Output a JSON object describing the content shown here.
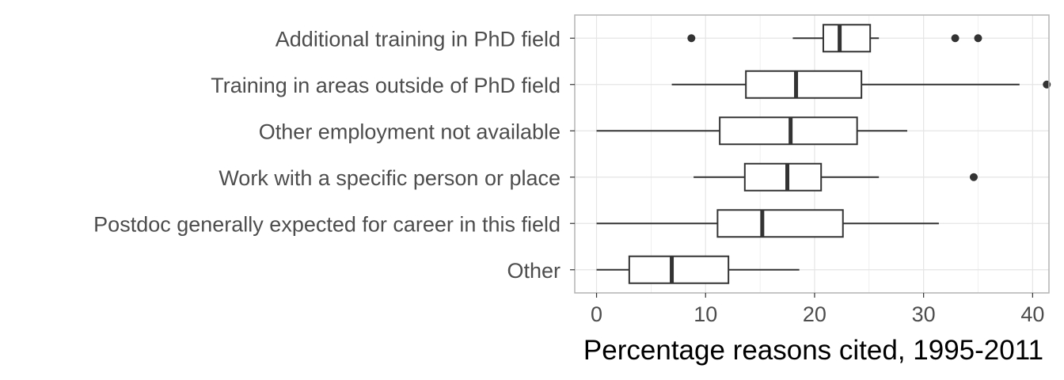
{
  "chart_data": {
    "type": "boxplot",
    "title": "",
    "xlabel": "Percentage reasons cited, 1995-2011",
    "ylabel": "",
    "xlim": [
      -2,
      41.5
    ],
    "xticks": [
      0,
      10,
      20,
      30,
      40
    ],
    "grid": true,
    "colors": {
      "box": "#333333",
      "panel_border": "#b3b3b3",
      "grid": "#e5e5e5"
    },
    "categories": [
      "Additional training in PhD field",
      "Training in areas outside of PhD field",
      "Other employment not available",
      "Work with a specific person or place",
      "Postdoc generally expected for career in this field",
      "Other"
    ],
    "boxes": [
      {
        "min": 18.0,
        "q1": 20.8,
        "median": 22.3,
        "q3": 25.1,
        "max": 25.9,
        "outliers": [
          8.7,
          32.9,
          35.0
        ]
      },
      {
        "min": 6.9,
        "q1": 13.7,
        "median": 18.3,
        "q3": 24.3,
        "max": 38.8,
        "outliers": [
          41.3
        ]
      },
      {
        "min": 0.0,
        "q1": 11.3,
        "median": 17.8,
        "q3": 23.9,
        "max": 28.5,
        "outliers": []
      },
      {
        "min": 8.9,
        "q1": 13.6,
        "median": 17.5,
        "q3": 20.6,
        "max": 25.9,
        "outliers": [
          34.6
        ]
      },
      {
        "min": 0.0,
        "q1": 11.1,
        "median": 15.2,
        "q3": 22.6,
        "max": 31.4,
        "outliers": []
      },
      {
        "min": 0.0,
        "q1": 3.0,
        "median": 6.9,
        "q3": 12.1,
        "max": 18.6,
        "outliers": []
      }
    ]
  }
}
